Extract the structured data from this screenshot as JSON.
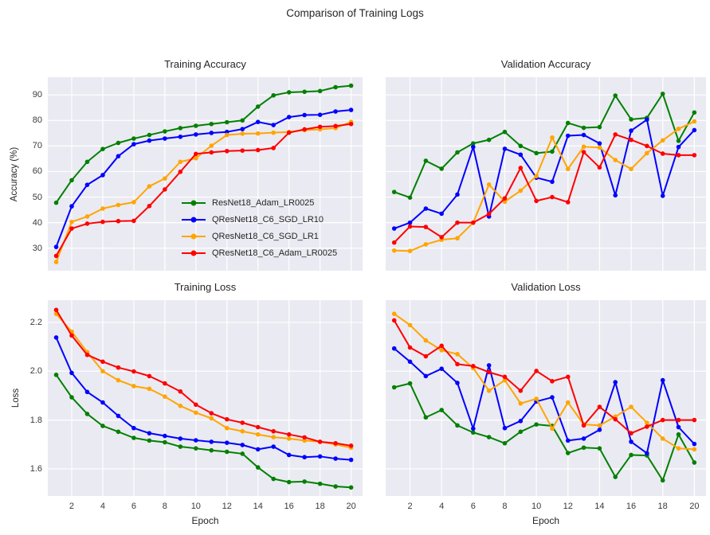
{
  "figure_title": "Comparison of Training Logs",
  "colors": {
    "axes_background": "#eaeaf2",
    "gridline": "#ffffff",
    "text": "#262626",
    "series_green": "#008000",
    "series_blue": "#0000ff",
    "series_orange": "#ffa500",
    "series_red": "#ff0000"
  },
  "chart_data": [
    {
      "type": "line",
      "title": "Training Accuracy",
      "ylabel": "Accuracy (%)",
      "xlabel": "",
      "legend": true,
      "legend_position": "lower-right-inside",
      "grid": true,
      "x": [
        1,
        2,
        3,
        4,
        5,
        6,
        7,
        8,
        9,
        10,
        11,
        12,
        13,
        14,
        15,
        16,
        17,
        18,
        19,
        20
      ],
      "xlim": [
        0.46,
        20.74
      ],
      "ylim": [
        21.2,
        96.9
      ],
      "xticks": {
        "show": false,
        "values": [
          2,
          4,
          6,
          8,
          10,
          12,
          14,
          16,
          18,
          20
        ],
        "labels": [
          "2",
          "4",
          "6",
          "8",
          "10",
          "12",
          "14",
          "16",
          "18",
          "20"
        ]
      },
      "yticks": {
        "show": true,
        "values": [
          30,
          40,
          50,
          60,
          70,
          80,
          90
        ],
        "labels": [
          "30",
          "40",
          "50",
          "60",
          "70",
          "80",
          "90"
        ]
      },
      "series": [
        {
          "name": "ResNet18_Adam_LR0025",
          "color": "#008000",
          "values": [
            47.8,
            56.6,
            63.8,
            68.8,
            71.2,
            72.9,
            74.3,
            75.7,
            77.0,
            77.9,
            78.6,
            79.3,
            80.0,
            85.4,
            89.8,
            91.0,
            91.2,
            91.5,
            93.0,
            93.6
          ]
        },
        {
          "name": "QResNet18_C6_SGD_LR10",
          "color": "#0000ff",
          "values": [
            30.5,
            46.4,
            54.8,
            58.6,
            66.0,
            70.7,
            72.1,
            72.9,
            73.6,
            74.5,
            75.1,
            75.5,
            76.6,
            79.4,
            78.2,
            81.3,
            82.1,
            82.2,
            83.5,
            84.1
          ]
        },
        {
          "name": "QResNet18_C6_SGD_LR1",
          "color": "#ffa500",
          "values": [
            24.6,
            40.3,
            42.4,
            45.5,
            46.9,
            48.0,
            54.2,
            57.3,
            63.8,
            65.2,
            70.1,
            74.3,
            74.8,
            74.9,
            75.2,
            75.5,
            76.2,
            76.5,
            77.0,
            79.4
          ]
        },
        {
          "name": "QResNet18_C6_Adam_LR0025",
          "color": "#ff0000",
          "values": [
            27.0,
            37.7,
            39.6,
            40.3,
            40.6,
            40.7,
            46.5,
            53.0,
            59.9,
            66.9,
            67.5,
            68.0,
            68.2,
            68.4,
            69.2,
            75.2,
            76.5,
            77.5,
            77.8,
            78.6
          ]
        }
      ]
    },
    {
      "type": "line",
      "title": "Validation Accuracy",
      "ylabel": "",
      "xlabel": "",
      "legend": false,
      "grid": true,
      "x": [
        1,
        2,
        3,
        4,
        5,
        6,
        7,
        8,
        9,
        10,
        11,
        12,
        13,
        14,
        15,
        16,
        17,
        18,
        19,
        20
      ],
      "xlim": [
        0.46,
        20.74
      ],
      "ylim": [
        21.2,
        96.9
      ],
      "xticks": {
        "show": false,
        "values": [
          2,
          4,
          6,
          8,
          10,
          12,
          14,
          16,
          18,
          20
        ],
        "labels": [
          "2",
          "4",
          "6",
          "8",
          "10",
          "12",
          "14",
          "16",
          "18",
          "20"
        ]
      },
      "yticks": {
        "show": false,
        "values": [
          30,
          40,
          50,
          60,
          70,
          80,
          90
        ],
        "labels": [
          "30",
          "40",
          "50",
          "60",
          "70",
          "80",
          "90"
        ]
      },
      "series": [
        {
          "name": "ResNet18_Adam_LR0025",
          "color": "#008000",
          "values": [
            52.0,
            49.8,
            64.2,
            61.1,
            67.5,
            71.0,
            72.4,
            75.5,
            70.0,
            67.2,
            67.8,
            79.0,
            77.1,
            77.4,
            89.7,
            80.4,
            81.0,
            90.4,
            72.0,
            83.1
          ]
        },
        {
          "name": "QResNet18_C6_SGD_LR10",
          "color": "#0000ff",
          "values": [
            37.7,
            40.0,
            45.5,
            43.5,
            51.0,
            69.6,
            42.4,
            68.9,
            66.6,
            57.6,
            56.0,
            74.0,
            74.3,
            71.0,
            50.7,
            76.0,
            80.3,
            50.5,
            69.6,
            76.2
          ]
        },
        {
          "name": "QResNet18_C6_SGD_LR1",
          "color": "#ffa500",
          "values": [
            29.1,
            28.9,
            31.5,
            33.3,
            33.9,
            40.0,
            54.9,
            48.2,
            52.5,
            58.2,
            73.3,
            61.0,
            69.7,
            69.4,
            64.5,
            61.0,
            67.2,
            72.2,
            76.7,
            79.6
          ]
        },
        {
          "name": "QResNet18_C6_Adam_LR0025",
          "color": "#ff0000",
          "values": [
            32.2,
            38.5,
            38.3,
            34.3,
            40.0,
            40.0,
            43.4,
            49.5,
            61.4,
            48.5,
            50.0,
            48.0,
            67.6,
            61.6,
            74.5,
            72.4,
            70.0,
            67.0,
            66.4,
            66.4
          ]
        }
      ]
    },
    {
      "type": "line",
      "title": "Training Loss",
      "ylabel": "Loss",
      "xlabel": "Epoch",
      "legend": false,
      "grid": true,
      "x": [
        1,
        2,
        3,
        4,
        5,
        6,
        7,
        8,
        9,
        10,
        11,
        12,
        13,
        14,
        15,
        16,
        17,
        18,
        19,
        20
      ],
      "xlim": [
        0.46,
        20.74
      ],
      "ylim": [
        1.489,
        2.291
      ],
      "xticks": {
        "show": true,
        "values": [
          2,
          4,
          6,
          8,
          10,
          12,
          14,
          16,
          18,
          20
        ],
        "labels": [
          "2",
          "4",
          "6",
          "8",
          "10",
          "12",
          "14",
          "16",
          "18",
          "20"
        ]
      },
      "yticks": {
        "show": true,
        "values": [
          1.6,
          1.8,
          2.0,
          2.2
        ],
        "labels": [
          "1.6",
          "1.8",
          "2.0",
          "2.2"
        ]
      },
      "series": [
        {
          "name": "ResNet18_Adam_LR0025",
          "color": "#008000",
          "values": [
            1.985,
            1.893,
            1.825,
            1.776,
            1.752,
            1.727,
            1.716,
            1.709,
            1.691,
            1.684,
            1.676,
            1.67,
            1.662,
            1.606,
            1.559,
            1.546,
            1.548,
            1.539,
            1.528,
            1.524
          ]
        },
        {
          "name": "QResNet18_C6_SGD_LR10",
          "color": "#0000ff",
          "values": [
            2.138,
            1.993,
            1.915,
            1.872,
            1.817,
            1.767,
            1.746,
            1.735,
            1.724,
            1.717,
            1.711,
            1.707,
            1.698,
            1.68,
            1.691,
            1.657,
            1.648,
            1.651,
            1.642,
            1.637
          ]
        },
        {
          "name": "QResNet18_C6_SGD_LR1",
          "color": "#ffa500",
          "values": [
            2.235,
            2.162,
            2.078,
            2.0,
            1.963,
            1.939,
            1.928,
            1.896,
            1.858,
            1.83,
            1.807,
            1.767,
            1.754,
            1.741,
            1.73,
            1.724,
            1.716,
            1.711,
            1.7,
            1.687
          ]
        },
        {
          "name": "QResNet18_C6_Adam_LR0025",
          "color": "#ff0000",
          "values": [
            2.251,
            2.146,
            2.067,
            2.039,
            2.015,
            1.999,
            1.98,
            1.95,
            1.917,
            1.863,
            1.828,
            1.803,
            1.789,
            1.771,
            1.754,
            1.741,
            1.729,
            1.711,
            1.705,
            1.695
          ]
        }
      ]
    },
    {
      "type": "line",
      "title": "Validation Loss",
      "ylabel": "",
      "xlabel": "Epoch",
      "legend": false,
      "grid": true,
      "x": [
        1,
        2,
        3,
        4,
        5,
        6,
        7,
        8,
        9,
        10,
        11,
        12,
        13,
        14,
        15,
        16,
        17,
        18,
        19,
        20
      ],
      "xlim": [
        0.46,
        20.74
      ],
      "ylim": [
        1.489,
        2.291
      ],
      "xticks": {
        "show": true,
        "values": [
          2,
          4,
          6,
          8,
          10,
          12,
          14,
          16,
          18,
          20
        ],
        "labels": [
          "2",
          "4",
          "6",
          "8",
          "10",
          "12",
          "14",
          "16",
          "18",
          "20"
        ]
      },
      "yticks": {
        "show": false,
        "values": [
          1.6,
          1.8,
          2.0,
          2.2
        ],
        "labels": [
          "1.6",
          "1.8",
          "2.0",
          "2.2"
        ]
      },
      "series": [
        {
          "name": "ResNet18_Adam_LR0025",
          "color": "#008000",
          "values": [
            1.934,
            1.95,
            1.811,
            1.841,
            1.778,
            1.749,
            1.73,
            1.705,
            1.752,
            1.782,
            1.776,
            1.665,
            1.687,
            1.684,
            1.567,
            1.657,
            1.655,
            1.553,
            1.741,
            1.626
          ]
        },
        {
          "name": "QResNet18_C6_SGD_LR10",
          "color": "#0000ff",
          "values": [
            2.093,
            2.039,
            1.98,
            2.01,
            1.952,
            1.765,
            2.024,
            1.767,
            1.796,
            1.876,
            1.893,
            1.716,
            1.724,
            1.76,
            1.955,
            1.711,
            1.664,
            1.963,
            1.771,
            1.702
          ]
        },
        {
          "name": "QResNet18_C6_SGD_LR1",
          "color": "#ffa500",
          "values": [
            2.235,
            2.189,
            2.126,
            2.086,
            2.07,
            2.013,
            1.92,
            1.963,
            1.868,
            1.887,
            1.765,
            1.872,
            1.782,
            1.778,
            1.814,
            1.854,
            1.789,
            1.724,
            1.684,
            1.68
          ]
        },
        {
          "name": "QResNet18_C6_Adam_LR0025",
          "color": "#ff0000",
          "values": [
            2.208,
            2.097,
            2.061,
            2.104,
            2.029,
            2.021,
            1.996,
            1.977,
            1.92,
            2.001,
            1.959,
            1.977,
            1.778,
            1.854,
            1.803,
            1.746,
            1.773,
            1.8,
            1.8,
            1.8
          ]
        }
      ]
    }
  ]
}
